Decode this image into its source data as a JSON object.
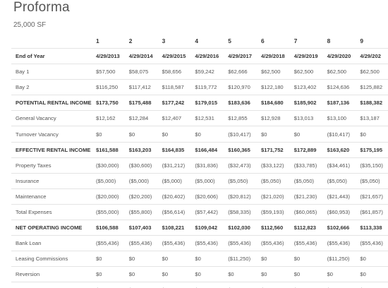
{
  "page": {
    "title": "Proforma",
    "subtitle": "25,000 SF"
  },
  "table": {
    "year_numbers": [
      "",
      "1",
      "2",
      "3",
      "4",
      "5",
      "6",
      "7",
      "8",
      "9"
    ],
    "rows": [
      {
        "label": "End of Year",
        "style": "eoy",
        "values": [
          "4/29/2013",
          "4/29/2014",
          "4/29/2015",
          "4/29/2016",
          "4/29/2017",
          "4/29/2018",
          "4/29/2019",
          "4/29/2020",
          "4/29/202"
        ]
      },
      {
        "label": "Bay 1",
        "style": "normal",
        "values": [
          "$57,500",
          "$58,075",
          "$58,656",
          "$59,242",
          "$62,666",
          "$62,500",
          "$62,500",
          "$62,500",
          "$62,500"
        ]
      },
      {
        "label": "Bay 2",
        "style": "normal",
        "values": [
          "$116,250",
          "$117,412",
          "$118,587",
          "$119,772",
          "$120,970",
          "$122,180",
          "$123,402",
          "$124,636",
          "$125,882"
        ]
      },
      {
        "label": "POTENTIAL RENTAL INCOME",
        "style": "bold",
        "values": [
          "$173,750",
          "$175,488",
          "$177,242",
          "$179,015",
          "$183,636",
          "$184,680",
          "$185,902",
          "$187,136",
          "$188,382"
        ]
      },
      {
        "label": "General Vacancy",
        "style": "normal",
        "values": [
          "$12,162",
          "$12,284",
          "$12,407",
          "$12,531",
          "$12,855",
          "$12,928",
          "$13,013",
          "$13,100",
          "$13,187"
        ]
      },
      {
        "label": "Turnover Vacancy",
        "style": "normal",
        "values": [
          "$0",
          "$0",
          "$0",
          "$0",
          "($10,417)",
          "$0",
          "$0",
          "($10,417)",
          "$0"
        ]
      },
      {
        "label": "EFFECTIVE RENTAL INCOME",
        "style": "bold",
        "values": [
          "$161,588",
          "$163,203",
          "$164,835",
          "$166,484",
          "$160,365",
          "$171,752",
          "$172,889",
          "$163,620",
          "$175,195"
        ]
      },
      {
        "label": "Property Taxes",
        "style": "normal",
        "values": [
          "($30,000)",
          "($30,600)",
          "($31,212)",
          "($31,836)",
          "($32,473)",
          "($33,122)",
          "($33,785)",
          "($34,461)",
          "($35,150)"
        ]
      },
      {
        "label": "Insurance",
        "style": "normal",
        "values": [
          "($5,000)",
          "($5,000)",
          "($5,000)",
          "($5,000)",
          "($5,050)",
          "($5,050)",
          "($5,050)",
          "($5,050)",
          "($5,050)"
        ]
      },
      {
        "label": "Maintenance",
        "style": "normal",
        "values": [
          "($20,000)",
          "($20,200)",
          "($20,402)",
          "($20,606)",
          "($20,812)",
          "($21,020)",
          "($21,230)",
          "($21,443)",
          "($21,657)"
        ]
      },
      {
        "label": "Total Expenses",
        "style": "normal",
        "values": [
          "($55,000)",
          "($55,800)",
          "($56,614)",
          "($57,442)",
          "($58,335)",
          "($59,193)",
          "($60,065)",
          "($60,953)",
          "($61,857)"
        ]
      },
      {
        "label": "NET OPERATING INCOME",
        "style": "bold",
        "values": [
          "$106,588",
          "$107,403",
          "$108,221",
          "$109,042",
          "$102,030",
          "$112,560",
          "$112,823",
          "$102,666",
          "$113,338"
        ]
      },
      {
        "label": "Bank Loan",
        "style": "normal",
        "values": [
          "($55,436)",
          "($55,436)",
          "($55,436)",
          "($55,436)",
          "($55,436)",
          "($55,436)",
          "($55,436)",
          "($55,436)",
          "($55,436)"
        ]
      },
      {
        "label": "Leasing Commissions",
        "style": "normal",
        "values": [
          "$0",
          "$0",
          "$0",
          "$0",
          "($11,250)",
          "$0",
          "$0",
          "($11,250)",
          "$0"
        ]
      },
      {
        "label": "Reversion",
        "style": "normal",
        "values": [
          "$0",
          "$0",
          "$0",
          "$0",
          "$0",
          "$0",
          "$0",
          "$0",
          "$0"
        ]
      },
      {
        "label": "CASH FLOW BEFORE TAX",
        "style": "bold",
        "values": [
          "$51,151",
          "$51,967",
          "$52,785",
          "$53,605",
          "$46,594",
          "$57,123",
          "$57,387",
          "$47,230",
          "$57,902"
        ]
      }
    ]
  }
}
